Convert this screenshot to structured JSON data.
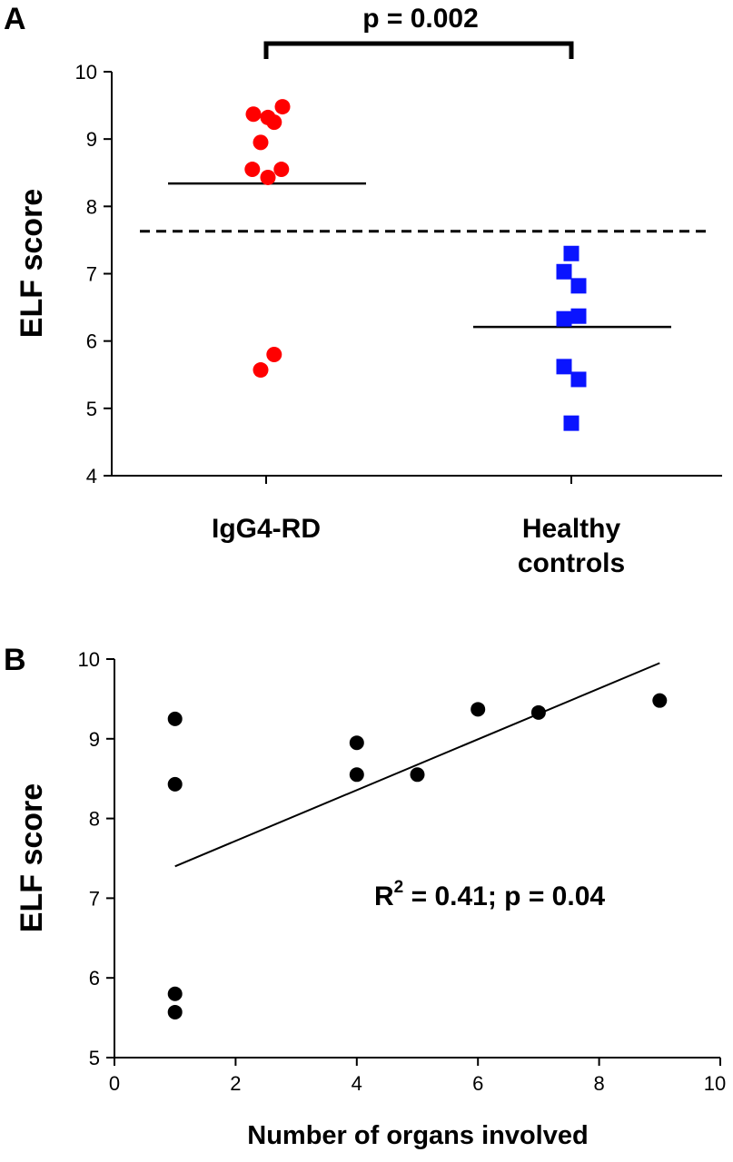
{
  "chart_data": [
    {
      "panel": "A",
      "type": "scatter",
      "ylabel": "ELF score",
      "ylim": [
        4,
        10
      ],
      "yticks": [
        "4",
        "5",
        "6",
        "7",
        "8",
        "9",
        "10"
      ],
      "categories": [
        "IgG4-RD",
        "Healthy\ncontrols"
      ],
      "category_lines": [
        [
          "IgG4-RD"
        ],
        [
          "Healthy",
          "controls"
        ]
      ],
      "series": [
        {
          "category": "IgG4-RD",
          "marker": "circle",
          "color": "#ff0000",
          "points": [
            {
              "jitter": -0.35,
              "y": 9.37
            },
            {
              "jitter": 0.05,
              "y": 9.32
            },
            {
              "jitter": 0.45,
              "y": 9.48
            },
            {
              "jitter": 0.22,
              "y": 9.25
            },
            {
              "jitter": -0.15,
              "y": 8.95
            },
            {
              "jitter": -0.38,
              "y": 8.55
            },
            {
              "jitter": 0.05,
              "y": 8.43
            },
            {
              "jitter": 0.42,
              "y": 8.55
            },
            {
              "jitter": 0.22,
              "y": 5.8
            },
            {
              "jitter": -0.15,
              "y": 5.57
            }
          ],
          "mean": 8.34
        },
        {
          "category": "Healthy controls",
          "marker": "square",
          "color": "#0a14ff",
          "points": [
            {
              "jitter": 0.0,
              "y": 7.3
            },
            {
              "jitter": -0.2,
              "y": 7.03
            },
            {
              "jitter": 0.2,
              "y": 6.82
            },
            {
              "jitter": -0.2,
              "y": 6.33
            },
            {
              "jitter": 0.2,
              "y": 6.37
            },
            {
              "jitter": -0.2,
              "y": 5.62
            },
            {
              "jitter": 0.2,
              "y": 5.43
            },
            {
              "jitter": 0.0,
              "y": 4.78
            }
          ],
          "mean": 6.21
        }
      ],
      "threshold": 7.63,
      "annotation": "p = 0.002",
      "bracket": [
        "IgG4-RD",
        "Healthy controls"
      ]
    },
    {
      "panel": "B",
      "type": "scatter",
      "xlabel": "Number of organs involved",
      "ylabel": "ELF score",
      "xlim": [
        0,
        10
      ],
      "ylim": [
        5,
        10
      ],
      "xticks": [
        "0",
        "2",
        "4",
        "6",
        "8",
        "10"
      ],
      "yticks": [
        "5",
        "6",
        "7",
        "8",
        "9",
        "10"
      ],
      "points": [
        {
          "x": 1,
          "y": 9.25
        },
        {
          "x": 1,
          "y": 8.43
        },
        {
          "x": 1,
          "y": 5.8
        },
        {
          "x": 1,
          "y": 5.57
        },
        {
          "x": 4,
          "y": 8.95
        },
        {
          "x": 4,
          "y": 8.55
        },
        {
          "x": 5,
          "y": 8.55
        },
        {
          "x": 6,
          "y": 9.37
        },
        {
          "x": 7,
          "y": 9.33
        },
        {
          "x": 9,
          "y": 9.48
        }
      ],
      "fit": {
        "x": [
          1,
          9
        ],
        "y": [
          7.4,
          9.95
        ]
      },
      "annotation": {
        "r": "R",
        "sup": "2",
        "rest": " = 0.41; p = 0.04"
      }
    }
  ]
}
